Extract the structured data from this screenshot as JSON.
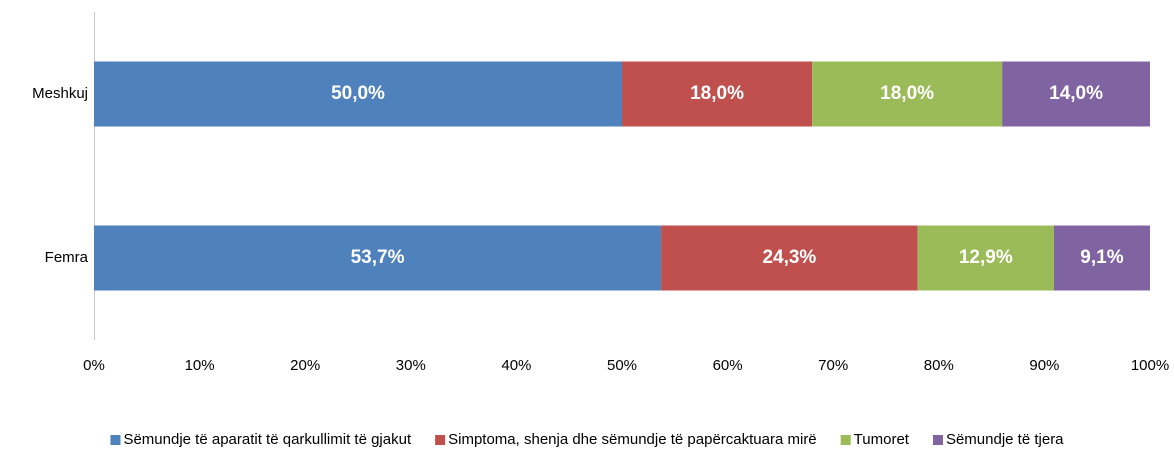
{
  "chart_data": {
    "type": "stacked-barh",
    "categories": [
      "Meshkuj",
      "Femra"
    ],
    "series": [
      {
        "name": "Sëmundje të aparatit të qarkullimit të gjakut",
        "color": "#4f81bd",
        "values": [
          50.0,
          53.7
        ],
        "value_labels": [
          "50,0%",
          "53,7%"
        ]
      },
      {
        "name": "Simptoma, shenja dhe sëmundje të papërcaktuara mirë",
        "color": "#c0504d",
        "values": [
          18.0,
          24.3
        ],
        "value_labels": [
          "18,0%",
          "24,3%"
        ]
      },
      {
        "name": "Tumoret",
        "color": "#9bbb59",
        "values": [
          18.0,
          12.9
        ],
        "value_labels": [
          "18,0%",
          "12,9%"
        ]
      },
      {
        "name": "Sëmundje të tjera",
        "color": "#8064a2",
        "values": [
          14.0,
          9.1
        ],
        "value_labels": [
          "14,0%",
          "9,1%"
        ]
      }
    ],
    "xlim": [
      0,
      100
    ],
    "xticks": [
      {
        "value": 0,
        "label": "0%"
      },
      {
        "value": 10,
        "label": "10%"
      },
      {
        "value": 20,
        "label": "20%"
      },
      {
        "value": 30,
        "label": "30%"
      },
      {
        "value": 40,
        "label": "40%"
      },
      {
        "value": 50,
        "label": "50%"
      },
      {
        "value": 60,
        "label": "60%"
      },
      {
        "value": 70,
        "label": "70%"
      },
      {
        "value": 80,
        "label": "80%"
      },
      {
        "value": 90,
        "label": "90%"
      },
      {
        "value": 100,
        "label": "100%"
      }
    ],
    "legend": "bottom"
  }
}
